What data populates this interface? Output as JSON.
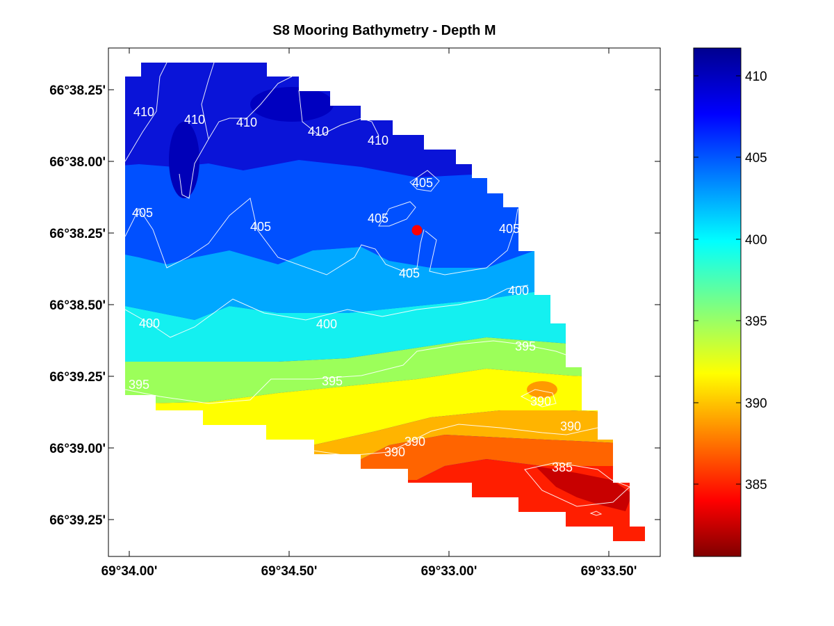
{
  "chart_data": {
    "type": "heatmap",
    "title": "S8 Mooring Bathymetry - Depth M",
    "xlabel": "",
    "ylabel": "",
    "x_ticks": [
      "69°34.00'",
      "69°34.50'",
      "69°33.00'",
      "69°33.50'"
    ],
    "y_ticks": [
      "66°38.25'",
      "66°38.00'",
      "66°38.25'",
      "66°38.50'",
      "66°39.25'",
      "66°39.00'",
      "66°39.25'"
    ],
    "colorbar": {
      "colormap": "jet",
      "range": [
        380.5,
        411.8
      ],
      "ticks": [
        410,
        405,
        400,
        395,
        390,
        385
      ]
    },
    "contours": [
      {
        "level": 410,
        "labels": [
          "410",
          "410",
          "410",
          "410",
          "410"
        ]
      },
      {
        "level": 405,
        "labels": [
          "405",
          "405",
          "405",
          "405",
          "405",
          "405"
        ]
      },
      {
        "level": 400,
        "labels": [
          "400",
          "400",
          "400"
        ]
      },
      {
        "level": 395,
        "labels": [
          "395",
          "395",
          "395"
        ]
      },
      {
        "level": 390,
        "labels": [
          "390",
          "390",
          "390",
          "390"
        ]
      },
      {
        "level": 385,
        "labels": [
          "385"
        ]
      }
    ],
    "depth_field": {
      "description_levels": [
        410,
        405,
        400,
        395,
        390,
        385
      ],
      "northwest_depth": 410,
      "southeast_depth": 383
    },
    "mooring_marker": {
      "color": "#ff0000"
    },
    "grid": false
  }
}
